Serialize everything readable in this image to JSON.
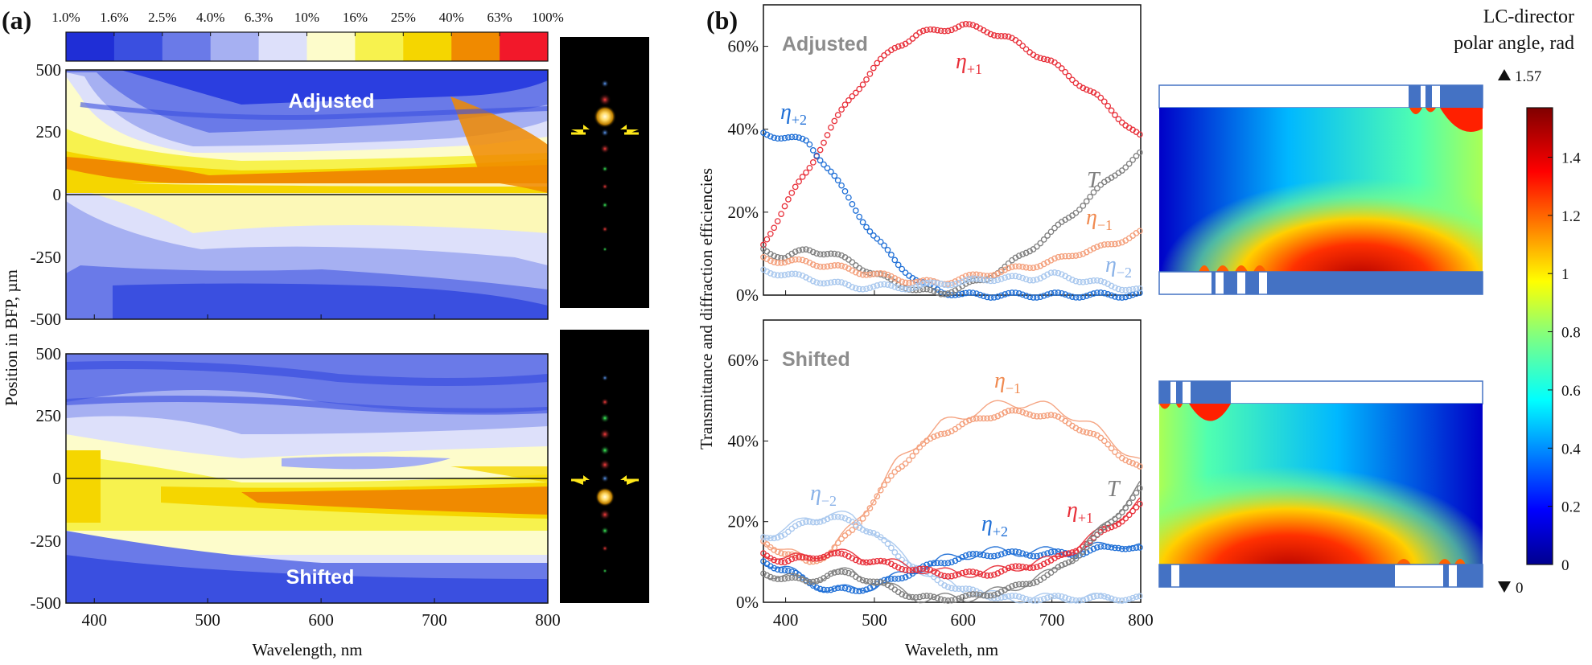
{
  "panel_a": {
    "label": "(a)",
    "colorbar_ticks": [
      "1.0%",
      "1.6%",
      "2.5%",
      "4.0%",
      "6.3%",
      "10%",
      "16%",
      "25%",
      "40%",
      "63%",
      "100%"
    ],
    "colorbar_colors": [
      "#1f2ed6",
      "#3a4fe0",
      "#6a7ae8",
      "#a6b0f2",
      "#dde0fa",
      "#fdfccb",
      "#f7f24e",
      "#f5d600",
      "#f08a00",
      "#f2182a"
    ],
    "y_label": "Position in BFP, µm",
    "x_label": "Wavelength, nm",
    "y_ticks": [
      "500",
      "250",
      "0",
      "-250",
      "-500"
    ],
    "x_ticks": [
      "400",
      "500",
      "600",
      "700",
      "800"
    ],
    "top_map_title": "Adjusted",
    "bottom_map_title": "Shifted"
  },
  "panel_b": {
    "label": "(b)",
    "y_label": "Transmittance and diffraction efficiencies",
    "x_label": "Waveleth, nm",
    "top_title": "Adjusted",
    "bottom_title": "Shifted",
    "top_y_ticks": [
      "60%",
      "40%",
      "20%",
      "0%"
    ],
    "bottom_y_ticks": [
      "60%",
      "40%",
      "20%",
      "0%"
    ],
    "x_ticks": [
      "400",
      "500",
      "600",
      "700",
      "800"
    ],
    "annotations_top": {
      "eta_p1": {
        "sym": "η",
        "sub": "+1"
      },
      "eta_p2": {
        "sym": "η",
        "sub": "+2"
      },
      "T": {
        "sym": "T",
        "sub": ""
      },
      "eta_m1": {
        "sym": "η",
        "sub": "−1"
      },
      "eta_m2": {
        "sym": "η",
        "sub": "−2"
      }
    },
    "annotations_bottom": {
      "eta_m1": {
        "sym": "η",
        "sub": "−1"
      },
      "eta_m2": {
        "sym": "η",
        "sub": "−2"
      },
      "eta_p2": {
        "sym": "η",
        "sub": "+2"
      },
      "eta_p1": {
        "sym": "η",
        "sub": "+1"
      },
      "T": {
        "sym": "T",
        "sub": ""
      }
    },
    "colors": {
      "eta_p1": "#e8303a",
      "eta_p2": "#1f6fd6",
      "T": "#7f7f7f",
      "eta_m1": "#f4a07c",
      "eta_m2": "#a9c8ee"
    }
  },
  "colorbar_right": {
    "title_line1": "LC-director",
    "title_line2": "polar angle, rad",
    "max_label": "1.57",
    "min_label": "0",
    "ticks": [
      "1.4",
      "1.2",
      "1",
      "0.8",
      "0.6",
      "0.4",
      "0.2",
      "0"
    ]
  },
  "chart_data": [
    {
      "type": "line",
      "title": "Adjusted",
      "xlabel": "Waveleth, nm",
      "ylabel": "Transmittance and diffraction efficiencies",
      "xlim": [
        375,
        800
      ],
      "ylim": [
        0,
        70
      ],
      "x": [
        375,
        400,
        425,
        450,
        475,
        500,
        525,
        550,
        575,
        600,
        625,
        650,
        675,
        700,
        725,
        750,
        775,
        800
      ],
      "series": [
        {
          "name": "η+1",
          "values": [
            12,
            22,
            30,
            40,
            48,
            55,
            60,
            63,
            64,
            65,
            64,
            62,
            59,
            56,
            52,
            48,
            43,
            38
          ]
        },
        {
          "name": "η+2",
          "values": [
            39,
            38,
            37,
            30,
            22,
            14,
            8,
            3,
            1,
            0,
            0,
            0,
            0,
            0,
            0,
            0,
            0,
            0
          ]
        },
        {
          "name": "T",
          "values": [
            11,
            9,
            11,
            10,
            8,
            5,
            3,
            1,
            0.5,
            2,
            4,
            7,
            11,
            15,
            20,
            25,
            30,
            34
          ]
        },
        {
          "name": "η−1",
          "values": [
            9,
            8,
            8,
            7,
            6,
            5,
            4,
            3,
            3,
            4,
            5,
            6,
            7,
            8,
            10,
            11,
            13,
            15
          ]
        },
        {
          "name": "η−2",
          "values": [
            6,
            5,
            4,
            3,
            2,
            2,
            2,
            2,
            3,
            3,
            4,
            4,
            4,
            5,
            4,
            3,
            2,
            1
          ]
        }
      ]
    },
    {
      "type": "line",
      "title": "Shifted",
      "xlabel": "Waveleth, nm",
      "ylabel": "Transmittance and diffraction efficiencies",
      "xlim": [
        375,
        800
      ],
      "ylim": [
        0,
        70
      ],
      "x": [
        375,
        400,
        425,
        450,
        475,
        500,
        525,
        550,
        575,
        600,
        625,
        650,
        675,
        700,
        725,
        750,
        775,
        800
      ],
      "series": [
        {
          "name": "η−1",
          "values": [
            15,
            12,
            10,
            12,
            18,
            25,
            33,
            38,
            42,
            44,
            46,
            47,
            47,
            46,
            44,
            41,
            37,
            33
          ]
        },
        {
          "name": "η−2",
          "values": [
            16,
            17,
            20,
            21,
            20,
            17,
            12,
            8,
            5,
            3,
            2,
            1,
            1,
            1,
            1,
            1,
            1,
            1
          ]
        },
        {
          "name": "η+2",
          "values": [
            10,
            8,
            5,
            3,
            3,
            4,
            6,
            8,
            10,
            11,
            12,
            12,
            12,
            12,
            12,
            13,
            14,
            13
          ]
        },
        {
          "name": "η+1",
          "values": [
            12,
            10,
            11,
            12,
            11,
            10,
            9,
            8,
            7,
            7,
            7,
            8,
            9,
            10,
            13,
            16,
            20,
            24
          ]
        },
        {
          "name": "T",
          "values": [
            7,
            6,
            5,
            7,
            7,
            5,
            3,
            1,
            1,
            1,
            2,
            3,
            5,
            7,
            11,
            16,
            22,
            28
          ]
        }
      ]
    }
  ]
}
